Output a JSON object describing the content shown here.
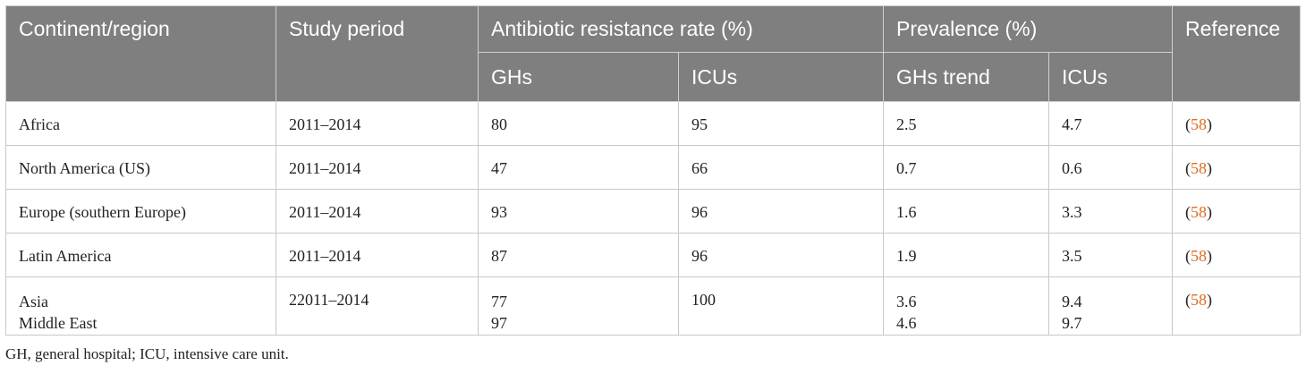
{
  "table": {
    "headers": {
      "continent": "Continent/region",
      "study_period": "Study period",
      "resistance": "Antibiotic resistance rate (%)",
      "prevalence": "Prevalence (%)",
      "reference": "Reference",
      "resistance_ghs": "GHs",
      "resistance_icus": "ICUs",
      "prevalence_ghs": "GHs trend",
      "prevalence_icus": "ICUs"
    },
    "rows": [
      {
        "region": "Africa",
        "period": "2011–2014",
        "res_gh": "80",
        "res_icu": "95",
        "prev_gh": "2.5",
        "prev_icu": "4.7",
        "ref_open": "(",
        "ref": "58",
        "ref_close": ")"
      },
      {
        "region": "North America (US)",
        "period": "2011–2014",
        "res_gh": "47",
        "res_icu": "66",
        "prev_gh": "0.7",
        "prev_icu": "0.6",
        "ref_open": "(",
        "ref": "58",
        "ref_close": ")"
      },
      {
        "region": "Europe (southern Europe)",
        "period": "2011–2014",
        "res_gh": "93",
        "res_icu": "96",
        "prev_gh": "1.6",
        "prev_icu": "3.3",
        "ref_open": "(",
        "ref": "58",
        "ref_close": ")"
      },
      {
        "region": "Latin America",
        "period": "2011–2014",
        "res_gh": "87",
        "res_icu": "96",
        "prev_gh": "1.9",
        "prev_icu": "3.5",
        "ref_open": "(",
        "ref": "58",
        "ref_close": ")"
      },
      {
        "region": [
          "Asia",
          "Middle East"
        ],
        "period": "22011–2014",
        "res_gh": [
          "77",
          "97"
        ],
        "res_icu": "100",
        "prev_gh": [
          "3.6",
          "4.6"
        ],
        "prev_icu": [
          "9.4",
          "9.7"
        ],
        "ref_open": "(",
        "ref": "58",
        "ref_close": ")"
      }
    ]
  },
  "footnote": "GH, general hospital; ICU, intensive care unit.",
  "colors": {
    "header_bg": "#7f7f7f",
    "header_text": "#ffffff",
    "link": "#e06b1f"
  }
}
